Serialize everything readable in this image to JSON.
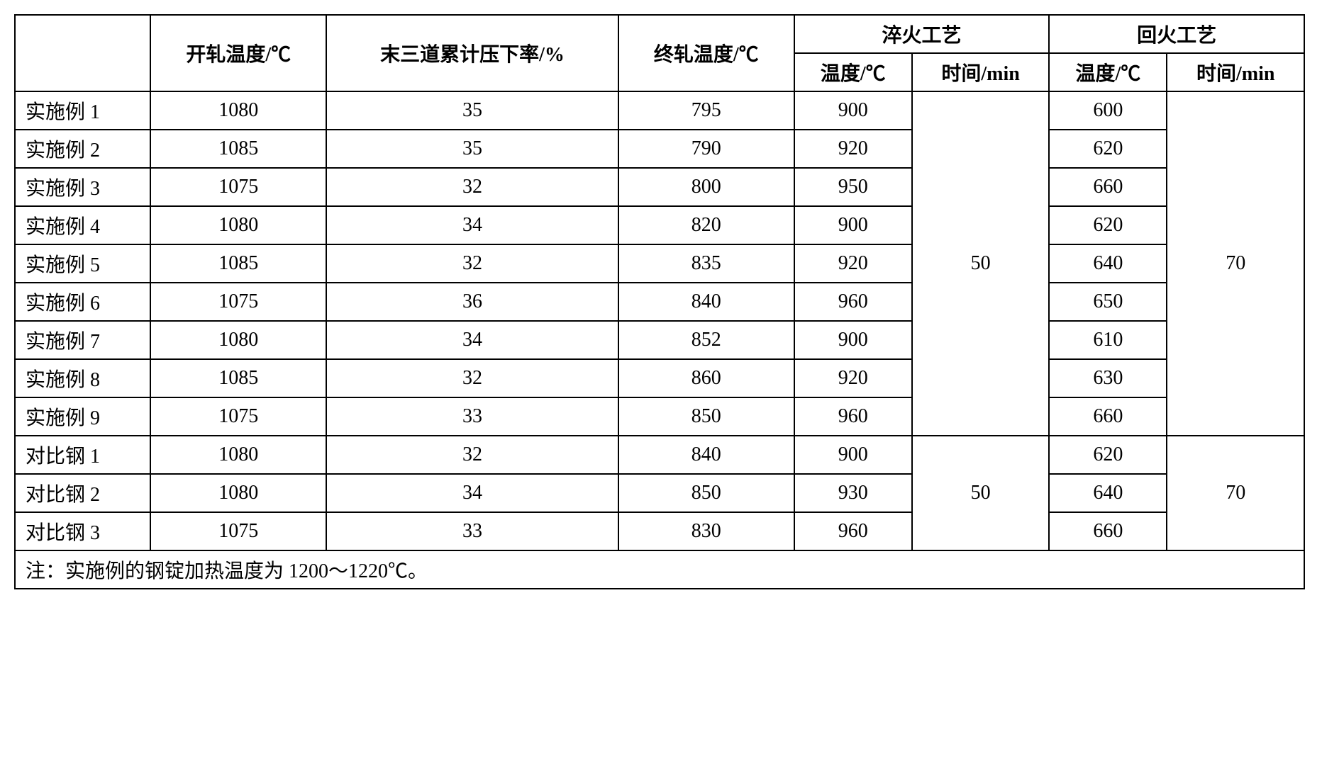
{
  "headers": {
    "col0": "",
    "col1": "开轧温度/℃",
    "col2": "末三道累计压下率/%",
    "col3": "终轧温度/℃",
    "quench_group": "淬火工艺",
    "temper_group": "回火工艺",
    "quench_temp": "温度/℃",
    "quench_time": "时间/min",
    "temper_temp": "温度/℃",
    "temper_time": "时间/min"
  },
  "rows": [
    {
      "label": "实施例 1",
      "open": "1080",
      "reduction": "35",
      "finish": "795",
      "qt": "900",
      "tt": "600"
    },
    {
      "label": "实施例 2",
      "open": "1085",
      "reduction": "35",
      "finish": "790",
      "qt": "920",
      "tt": "620"
    },
    {
      "label": "实施例 3",
      "open": "1075",
      "reduction": "32",
      "finish": "800",
      "qt": "950",
      "tt": "660"
    },
    {
      "label": "实施例 4",
      "open": "1080",
      "reduction": "34",
      "finish": "820",
      "qt": "900",
      "tt": "620"
    },
    {
      "label": "实施例 5",
      "open": "1085",
      "reduction": "32",
      "finish": "835",
      "qt": "920",
      "tt": "640"
    },
    {
      "label": "实施例 6",
      "open": "1075",
      "reduction": "36",
      "finish": "840",
      "qt": "960",
      "tt": "650"
    },
    {
      "label": "实施例 7",
      "open": "1080",
      "reduction": "34",
      "finish": "852",
      "qt": "900",
      "tt": "610"
    },
    {
      "label": "实施例 8",
      "open": "1085",
      "reduction": "32",
      "finish": "860",
      "qt": "920",
      "tt": "630"
    },
    {
      "label": "实施例 9",
      "open": "1075",
      "reduction": "33",
      "finish": "850",
      "qt": "960",
      "tt": "660"
    }
  ],
  "comp_rows": [
    {
      "label": "对比钢 1",
      "open": "1080",
      "reduction": "32",
      "finish": "840",
      "qt": "900",
      "tt": "620"
    },
    {
      "label": "对比钢 2",
      "open": "1080",
      "reduction": "34",
      "finish": "850",
      "qt": "930",
      "tt": "640"
    },
    {
      "label": "对比钢 3",
      "open": "1075",
      "reduction": "33",
      "finish": "830",
      "qt": "960",
      "tt": "660"
    }
  ],
  "merged": {
    "qtime1": "50",
    "ttime1": "70",
    "qtime2": "50",
    "ttime2": "70"
  },
  "note": "注：实施例的钢锭加热温度为 1200～1220℃。",
  "style": {
    "border_color": "#000000",
    "background_color": "#ffffff",
    "text_color": "#000000",
    "font_size_pt": 28
  }
}
